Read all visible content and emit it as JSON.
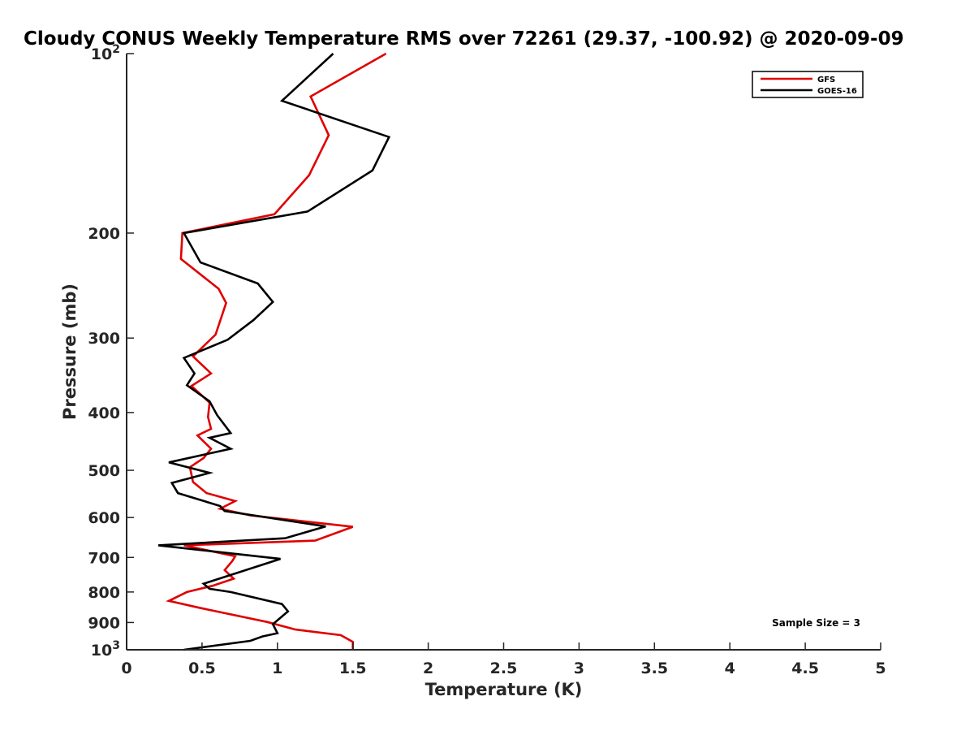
{
  "chart_data": {
    "type": "line",
    "title": "Cloudy CONUS Weekly Temperature RMS over 72261 (29.37, -100.92) @ 2020-09-09",
    "xlabel": "Temperature (K)",
    "ylabel": "Pressure (mb)",
    "xlim": [
      0,
      5
    ],
    "ylim": [
      100,
      1000
    ],
    "y_scale": "log",
    "y_reversed": true,
    "x_ticks": [
      {
        "v": 0,
        "label": "0"
      },
      {
        "v": 0.5,
        "label": "0.5"
      },
      {
        "v": 1,
        "label": "1"
      },
      {
        "v": 1.5,
        "label": "1.5"
      },
      {
        "v": 2,
        "label": "2"
      },
      {
        "v": 2.5,
        "label": "2.5"
      },
      {
        "v": 3,
        "label": "3"
      },
      {
        "v": 3.5,
        "label": "3.5"
      },
      {
        "v": 4,
        "label": "4"
      },
      {
        "v": 4.5,
        "label": "4.5"
      },
      {
        "v": 5,
        "label": "5"
      }
    ],
    "y_ticks": [
      {
        "v": 100,
        "base": "10",
        "exp": "2"
      },
      {
        "v": 200,
        "label": "200"
      },
      {
        "v": 300,
        "label": "300"
      },
      {
        "v": 400,
        "label": "400"
      },
      {
        "v": 500,
        "label": "500"
      },
      {
        "v": 600,
        "label": "600"
      },
      {
        "v": 700,
        "label": "700"
      },
      {
        "v": 800,
        "label": "800"
      },
      {
        "v": 900,
        "label": "900"
      },
      {
        "v": 1000,
        "base": "10",
        "exp": "3"
      }
    ],
    "grid": false,
    "legend_position": "top-right",
    "series": [
      {
        "name": "GFS",
        "color": "#e00000",
        "points": [
          [
            1.72,
            100
          ],
          [
            1.22,
            118
          ],
          [
            1.34,
            137
          ],
          [
            1.21,
            160
          ],
          [
            0.98,
            186
          ],
          [
            0.37,
            200
          ],
          [
            0.36,
            221
          ],
          [
            0.61,
            248
          ],
          [
            0.66,
            262
          ],
          [
            0.59,
            296
          ],
          [
            0.44,
            322
          ],
          [
            0.56,
            344
          ],
          [
            0.43,
            361
          ],
          [
            0.55,
            385
          ],
          [
            0.54,
            407
          ],
          [
            0.56,
            426
          ],
          [
            0.47,
            437
          ],
          [
            0.56,
            460
          ],
          [
            0.51,
            477
          ],
          [
            0.42,
            494
          ],
          [
            0.44,
            523
          ],
          [
            0.53,
            546
          ],
          [
            0.72,
            563
          ],
          [
            0.62,
            580
          ],
          [
            0.82,
            595
          ],
          [
            1.5,
            622
          ],
          [
            1.25,
            656
          ],
          [
            0.38,
            668
          ],
          [
            0.72,
            697
          ],
          [
            0.7,
            710
          ],
          [
            0.65,
            735
          ],
          [
            0.71,
            760
          ],
          [
            0.57,
            781
          ],
          [
            0.4,
            800
          ],
          [
            0.28,
            828
          ],
          [
            0.48,
            850
          ],
          [
            0.93,
            898
          ],
          [
            1.12,
            925
          ],
          [
            1.42,
            945
          ],
          [
            1.5,
            970
          ],
          [
            1.5,
            1000
          ]
        ]
      },
      {
        "name": "GOES-16",
        "color": "#000000",
        "points": [
          [
            1.37,
            100
          ],
          [
            1.03,
            120
          ],
          [
            1.74,
            138
          ],
          [
            1.63,
            157
          ],
          [
            1.2,
            184
          ],
          [
            0.38,
            200
          ],
          [
            0.49,
            224
          ],
          [
            0.87,
            243
          ],
          [
            0.97,
            261
          ],
          [
            0.84,
            280
          ],
          [
            0.67,
            302
          ],
          [
            0.38,
            324
          ],
          [
            0.45,
            344
          ],
          [
            0.4,
            360
          ],
          [
            0.55,
            383
          ],
          [
            0.6,
            404
          ],
          [
            0.69,
            433
          ],
          [
            0.55,
            441
          ],
          [
            0.69,
            460
          ],
          [
            0.28,
            485
          ],
          [
            0.55,
            505
          ],
          [
            0.3,
            525
          ],
          [
            0.34,
            546
          ],
          [
            0.62,
            574
          ],
          [
            0.65,
            585
          ],
          [
            1.32,
            621
          ],
          [
            1.05,
            650
          ],
          [
            0.21,
            668
          ],
          [
            1.02,
            704
          ],
          [
            0.51,
            775
          ],
          [
            0.55,
            790
          ],
          [
            0.69,
            800
          ],
          [
            1.03,
            838
          ],
          [
            1.07,
            862
          ],
          [
            0.97,
            906
          ],
          [
            1.0,
            938
          ],
          [
            0.9,
            950
          ],
          [
            0.82,
            966
          ],
          [
            0.38,
            1000
          ]
        ]
      }
    ],
    "annotations": [
      "Sample Size = 3"
    ]
  }
}
